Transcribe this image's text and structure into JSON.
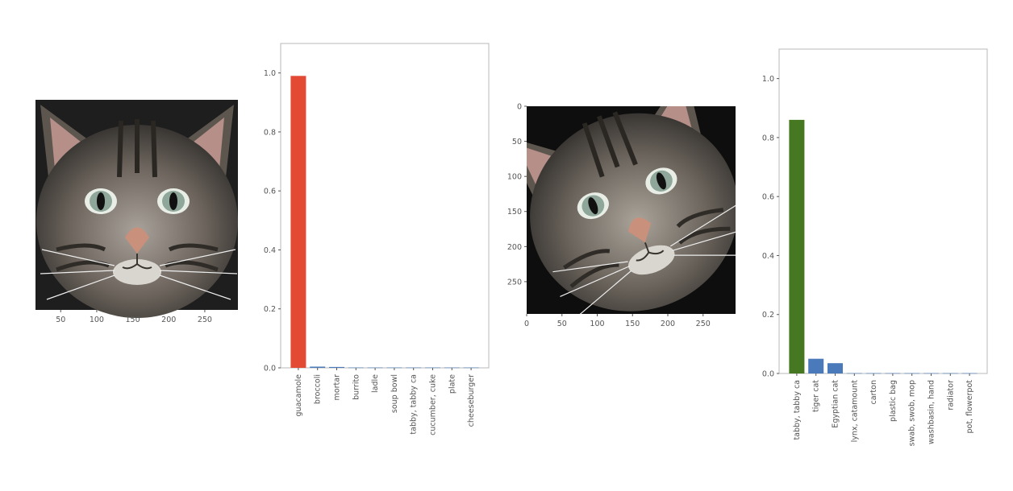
{
  "colors": {
    "highlight_red": "#e24a33",
    "highlight_green": "#467821",
    "bar_blue": "#4a7ab9"
  },
  "images": [
    {
      "kind": "cat-photo",
      "description_icon": "tabby-cat-face-icon",
      "x_ticks": [
        "50",
        "100",
        "150",
        "200",
        "250"
      ],
      "y_ticks": []
    },
    {
      "kind": "cat-photo-rotated",
      "description_icon": "tabby-cat-face-rotated-icon",
      "x_ticks": [
        "0",
        "50",
        "100",
        "150",
        "200",
        "250"
      ],
      "y_ticks": [
        "0",
        "50",
        "100",
        "150",
        "200",
        "250"
      ]
    }
  ],
  "chart_data": [
    {
      "type": "bar",
      "categories": [
        "guacamole",
        "broccoli",
        "mortar",
        "burrito",
        "ladle",
        "soup bowl",
        "tabby, tabby ca",
        "cucumber, cuke",
        "plate",
        "cheeseburger"
      ],
      "values": [
        0.99,
        0.004,
        0.003,
        0.001,
        0.001,
        0.001,
        0.001,
        0.001,
        0.001,
        0.001
      ],
      "highlight_index": 0,
      "ylim": [
        0,
        1.1
      ],
      "y_ticks": [
        "0.0",
        "0.2",
        "0.4",
        "0.6",
        "0.8",
        "1.0"
      ],
      "title": "",
      "xlabel": "",
      "ylabel": ""
    },
    {
      "type": "bar",
      "categories": [
        "tabby, tabby ca",
        "tiger cat",
        "Egyptian cat",
        "lynx, catamount",
        "carton",
        "plastic bag",
        "swab, swob, mop",
        "washbasin, hand",
        "radiator",
        "pot, flowerpot"
      ],
      "values": [
        0.86,
        0.05,
        0.035,
        0.001,
        0.001,
        0.001,
        0.001,
        0.001,
        0.001,
        0.001
      ],
      "highlight_index": 0,
      "ylim": [
        0,
        1.1
      ],
      "y_ticks": [
        "0.0",
        "0.2",
        "0.4",
        "0.6",
        "0.8",
        "1.0"
      ],
      "title": "",
      "xlabel": "",
      "ylabel": ""
    }
  ]
}
